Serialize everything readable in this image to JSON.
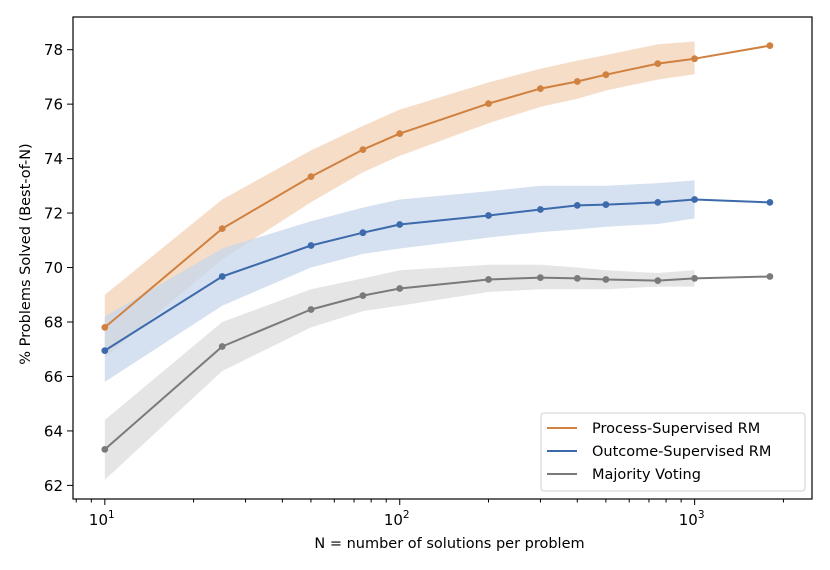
{
  "chart_data": {
    "type": "line",
    "title": "",
    "xlabel": "N = number of solutions per problem",
    "ylabel": "% Problems Solved (Best-of-N)",
    "xscale": "log",
    "xlim": [
      7.8,
      2500
    ],
    "ylim": [
      61.5,
      79.2
    ],
    "x_ticks": [
      {
        "value": 10,
        "base": "10",
        "exp": "1"
      },
      {
        "value": 100,
        "base": "10",
        "exp": "2"
      },
      {
        "value": 1000,
        "base": "10",
        "exp": "3"
      }
    ],
    "y_ticks": [
      62,
      64,
      66,
      68,
      70,
      72,
      74,
      76,
      78
    ],
    "grid": false,
    "legend_position": "lower-right",
    "x": [
      10,
      25,
      50,
      75,
      100,
      200,
      300,
      400,
      500,
      750,
      1000,
      1800
    ],
    "series": [
      {
        "name": "Process-Supervised RM",
        "color": "#d0813f",
        "band_color": "#f3d2b6",
        "values": [
          67.8,
          71.43,
          73.34,
          74.33,
          74.92,
          76.02,
          76.57,
          76.83,
          77.08,
          77.49,
          77.67,
          78.15
        ],
        "band_x": [
          10,
          25,
          50,
          75,
          100,
          200,
          300,
          400,
          500,
          750,
          1000
        ],
        "band_lower": [
          66.7,
          70.3,
          72.4,
          73.5,
          74.1,
          75.3,
          75.9,
          76.2,
          76.5,
          76.9,
          77.1
        ],
        "band_upper": [
          69.0,
          72.5,
          74.3,
          75.2,
          75.8,
          76.8,
          77.3,
          77.6,
          77.8,
          78.2,
          78.3
        ]
      },
      {
        "name": "Outcome-Supervised RM",
        "color": "#3d6aab",
        "band_color": "#c7d7ec",
        "values": [
          66.95,
          69.67,
          70.81,
          71.28,
          71.58,
          71.91,
          72.13,
          72.28,
          72.31,
          72.39,
          72.5,
          72.39
        ],
        "band_x": [
          10,
          25,
          50,
          75,
          100,
          200,
          300,
          400,
          500,
          750,
          1000
        ],
        "band_lower": [
          65.8,
          68.6,
          70.0,
          70.5,
          70.7,
          71.1,
          71.3,
          71.4,
          71.5,
          71.6,
          71.8
        ],
        "band_upper": [
          68.2,
          70.7,
          71.7,
          72.2,
          72.5,
          72.8,
          73.0,
          73.0,
          73.0,
          73.1,
          73.2
        ]
      },
      {
        "name": "Majority Voting",
        "color": "#7a7a7a",
        "band_color": "#dcdcdc",
        "values": [
          63.32,
          67.1,
          68.46,
          68.97,
          69.23,
          69.56,
          69.63,
          69.6,
          69.56,
          69.52,
          69.6,
          69.67
        ],
        "band_x": [
          10,
          25,
          50,
          75,
          100,
          200,
          300,
          400,
          500,
          750,
          1000
        ],
        "band_lower": [
          62.2,
          66.2,
          67.8,
          68.4,
          68.6,
          69.1,
          69.2,
          69.2,
          69.2,
          69.3,
          69.3
        ],
        "band_upper": [
          64.4,
          68.0,
          69.2,
          69.6,
          69.9,
          70.1,
          70.1,
          70.0,
          69.9,
          69.8,
          69.9
        ]
      }
    ]
  }
}
